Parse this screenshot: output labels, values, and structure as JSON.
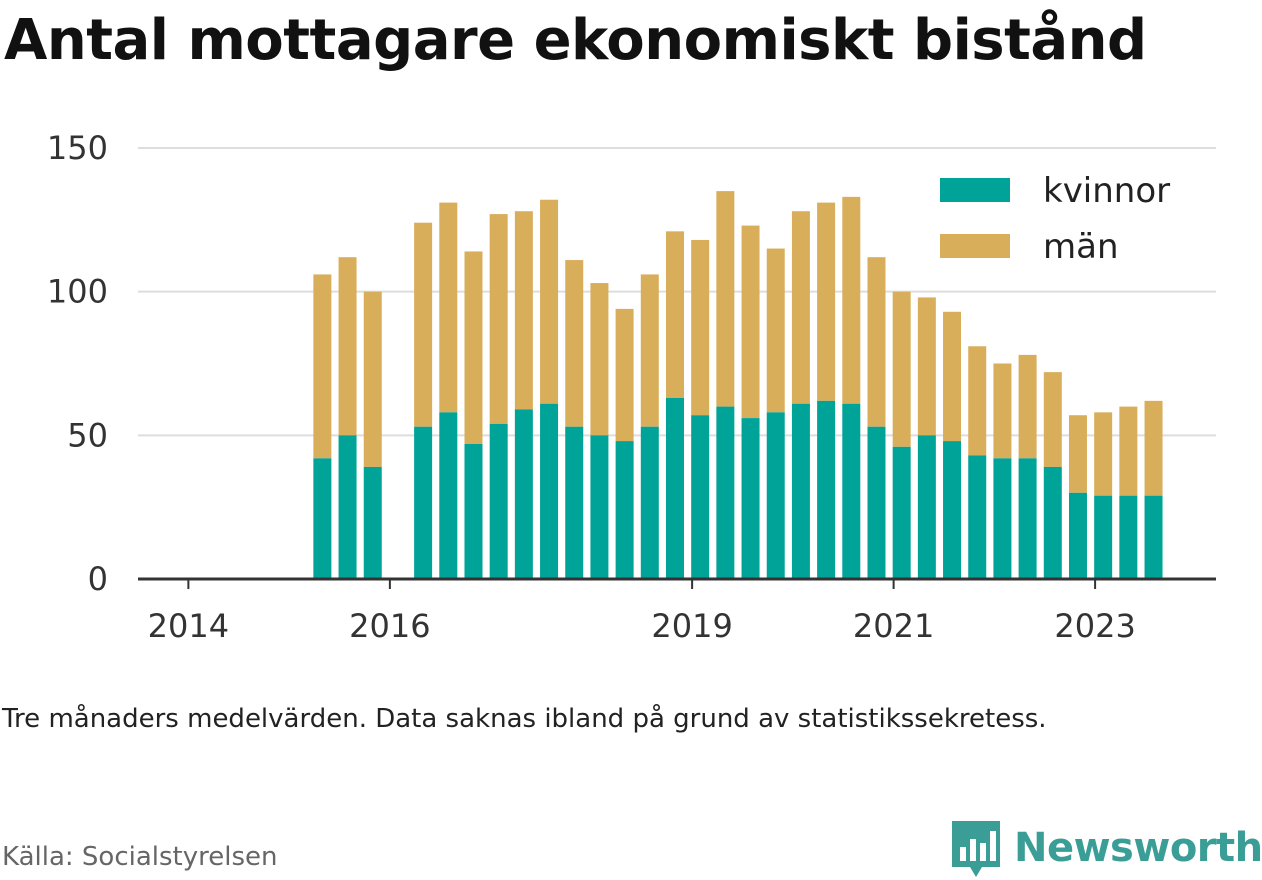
{
  "title": "Antal mottagare ekonomiskt bistånd",
  "note": "Tre månaders medelvärden. Data saknas ibland på grund av statistikssekretess.",
  "source": "Källa: Socialstyrelsen",
  "brand": {
    "name": "Newsworthy",
    "icon": "newsworthy-logo-icon",
    "color": "#3a9e96"
  },
  "colors": {
    "kvinnor": "#00a398",
    "man": "#d9ae5a",
    "grid": "#dddddd",
    "axis": "#333333"
  },
  "chart_data": {
    "type": "bar",
    "stacked": true,
    "ylim": [
      0,
      150
    ],
    "yticks": [
      0,
      50,
      100,
      150
    ],
    "xticks": [
      {
        "label": "2014",
        "x": 2014.0
      },
      {
        "label": "2016",
        "x": 2016.0
      },
      {
        "label": "2019",
        "x": 2019.0
      },
      {
        "label": "2021",
        "x": 2021.0
      },
      {
        "label": "2023",
        "x": 2023.0
      }
    ],
    "grid": true,
    "legend_position": "top-right",
    "x": [
      2015.33,
      2015.58,
      2015.83,
      2016.33,
      2016.58,
      2016.83,
      2017.08,
      2017.33,
      2017.58,
      2017.83,
      2018.08,
      2018.33,
      2018.58,
      2018.83,
      2019.08,
      2019.33,
      2019.58,
      2019.83,
      2020.08,
      2020.33,
      2020.58,
      2020.83,
      2021.08,
      2021.33,
      2021.58,
      2021.83,
      2022.08,
      2022.33,
      2022.58,
      2022.83,
      2023.08,
      2023.33,
      2023.58
    ],
    "series": [
      {
        "name": "kvinnor",
        "values": [
          42,
          50,
          39,
          53,
          58,
          47,
          54,
          59,
          61,
          53,
          50,
          48,
          53,
          63,
          57,
          60,
          56,
          58,
          61,
          62,
          61,
          53,
          46,
          50,
          48,
          43,
          42,
          42,
          39,
          30,
          29,
          29,
          29
        ]
      },
      {
        "name": "män",
        "values": [
          64,
          62,
          61,
          71,
          73,
          67,
          73,
          69,
          71,
          58,
          53,
          46,
          53,
          58,
          61,
          75,
          67,
          57,
          67,
          69,
          72,
          59,
          54,
          48,
          45,
          38,
          33,
          36,
          33,
          27,
          29,
          31,
          33
        ]
      }
    ]
  }
}
